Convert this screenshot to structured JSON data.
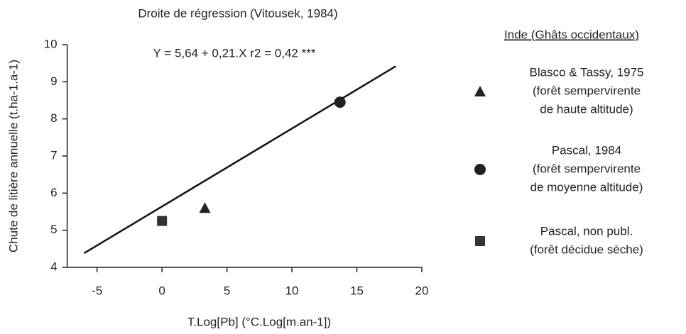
{
  "chart_data": {
    "type": "scatter",
    "title": "Droite de régression (Vitousek, 1984)",
    "equation": "Y = 5,64 + 0,21.X   r2 = 0,42 ***",
    "x_label": "T.Log[Pb]    (°C.Log[m.an-1])",
    "y_label": "Chute de litière annuelle (t.ha-1.a-1)",
    "legend_title": "Inde (Ghâts occidentaux)",
    "xlim": [
      -7.3,
      20
    ],
    "ylim": [
      4,
      10
    ],
    "xticks": [
      -5,
      0,
      5,
      10,
      15,
      20
    ],
    "yticks": [
      4,
      5,
      6,
      7,
      8,
      9,
      10
    ],
    "regression": {
      "x": [
        -6,
        18
      ],
      "values": [
        4.38,
        9.42
      ],
      "color": "#111"
    },
    "series": [
      {
        "name": "Blasco & Tassy, 1975",
        "description": [
          "(forêt sempervirente",
          "de haute altitude)"
        ],
        "marker": "triangle",
        "color": "#222",
        "x": [
          3.3
        ],
        "values": [
          5.6
        ]
      },
      {
        "name": "Pascal, 1984",
        "description": [
          "(forêt sempervirente",
          "de moyenne altitude)"
        ],
        "marker": "circle",
        "color": "#222",
        "x": [
          13.7
        ],
        "values": [
          8.45
        ]
      },
      {
        "name": "Pascal, non publ.",
        "description": [
          "(forêt décidue sèche)"
        ],
        "marker": "square",
        "color": "#333",
        "x": [
          0
        ],
        "values": [
          5.25
        ]
      }
    ]
  }
}
